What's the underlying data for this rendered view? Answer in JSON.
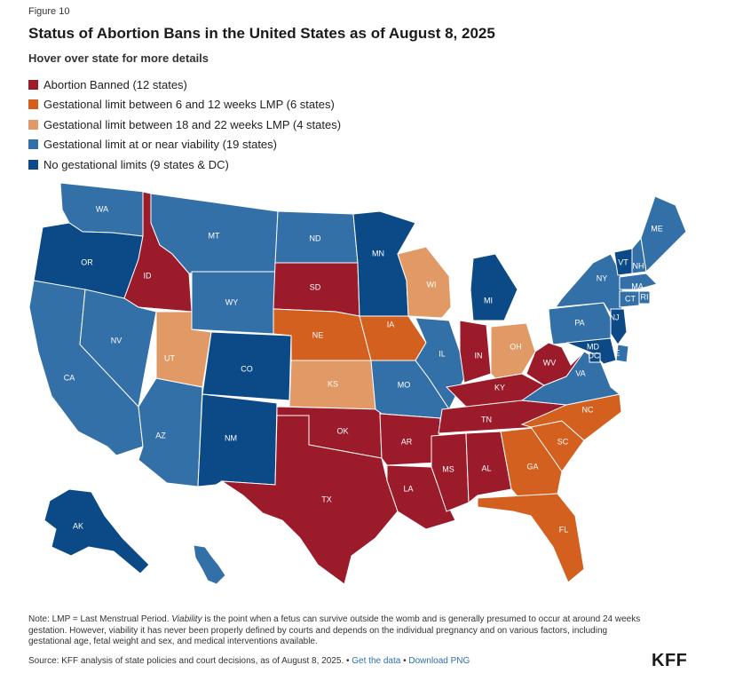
{
  "figure_label": "Figure 10",
  "title": "Status of Abortion Bans in the United States as of August 8, 2025",
  "subtitle": "Hover over state for more details",
  "colors": {
    "banned": "#9b1b2b",
    "limit_6_12": "#d4601f",
    "limit_18_22": "#e19a66",
    "viability": "#3470a8",
    "no_limit": "#0b4a86"
  },
  "legend": [
    {
      "label": "Abortion Banned (12 states)",
      "color": "#9b1b2b"
    },
    {
      "label": "Gestational limit between 6 and 12 weeks LMP (6 states)",
      "color": "#d4601f"
    },
    {
      "label": "Gestational limit between 18 and 22 weeks LMP (4 states)",
      "color": "#e19a66"
    },
    {
      "label": "Gestational limit at or near viability (19 states)",
      "color": "#3470a8"
    },
    {
      "label": "No gestational limits (9 states & DC)",
      "color": "#0b4a86"
    }
  ],
  "states": [
    {
      "abbr": "WA",
      "status": "viability"
    },
    {
      "abbr": "OR",
      "status": "no_limit"
    },
    {
      "abbr": "CA",
      "status": "viability"
    },
    {
      "abbr": "ID",
      "status": "banned"
    },
    {
      "abbr": "NV",
      "status": "viability"
    },
    {
      "abbr": "AZ",
      "status": "viability"
    },
    {
      "abbr": "UT",
      "status": "limit_18_22"
    },
    {
      "abbr": "MT",
      "status": "viability"
    },
    {
      "abbr": "WY",
      "status": "viability"
    },
    {
      "abbr": "CO",
      "status": "no_limit"
    },
    {
      "abbr": "NM",
      "status": "no_limit"
    },
    {
      "abbr": "ND",
      "status": "viability"
    },
    {
      "abbr": "SD",
      "status": "banned"
    },
    {
      "abbr": "NE",
      "status": "limit_6_12"
    },
    {
      "abbr": "KS",
      "status": "limit_18_22"
    },
    {
      "abbr": "OK",
      "status": "banned"
    },
    {
      "abbr": "TX",
      "status": "banned"
    },
    {
      "abbr": "MN",
      "status": "no_limit"
    },
    {
      "abbr": "IA",
      "status": "limit_6_12"
    },
    {
      "abbr": "MO",
      "status": "viability"
    },
    {
      "abbr": "AR",
      "status": "banned"
    },
    {
      "abbr": "LA",
      "status": "banned"
    },
    {
      "abbr": "WI",
      "status": "limit_18_22"
    },
    {
      "abbr": "IL",
      "status": "viability"
    },
    {
      "abbr": "MI",
      "status": "no_limit"
    },
    {
      "abbr": "IN",
      "status": "banned"
    },
    {
      "abbr": "OH",
      "status": "limit_18_22"
    },
    {
      "abbr": "KY",
      "status": "banned"
    },
    {
      "abbr": "TN",
      "status": "banned"
    },
    {
      "abbr": "MS",
      "status": "banned"
    },
    {
      "abbr": "AL",
      "status": "banned"
    },
    {
      "abbr": "GA",
      "status": "limit_6_12"
    },
    {
      "abbr": "FL",
      "status": "limit_6_12"
    },
    {
      "abbr": "SC",
      "status": "limit_6_12"
    },
    {
      "abbr": "NC",
      "status": "limit_6_12"
    },
    {
      "abbr": "VA",
      "status": "viability"
    },
    {
      "abbr": "WV",
      "status": "banned"
    },
    {
      "abbr": "PA",
      "status": "viability"
    },
    {
      "abbr": "NY",
      "status": "viability"
    },
    {
      "abbr": "VT",
      "status": "no_limit"
    },
    {
      "abbr": "NH",
      "status": "viability"
    },
    {
      "abbr": "ME",
      "status": "viability"
    },
    {
      "abbr": "MA",
      "status": "viability"
    },
    {
      "abbr": "RI",
      "status": "viability"
    },
    {
      "abbr": "CT",
      "status": "viability"
    },
    {
      "abbr": "NJ",
      "status": "no_limit"
    },
    {
      "abbr": "DE",
      "status": "viability"
    },
    {
      "abbr": "MD",
      "status": "no_limit"
    },
    {
      "abbr": "DC",
      "status": "no_limit"
    },
    {
      "abbr": "AK",
      "status": "no_limit"
    },
    {
      "abbr": "HI",
      "status": "viability"
    }
  ],
  "note": {
    "prefix": "Note: LMP = Last Menstrual Period. ",
    "italic": "Viability",
    "rest": " is the point when a fetus can survive outside the womb and is generally presumed to occur at around 24 weeks gestation. However, viability it has never been properly defined by courts and depends on the individual pregnancy and on various factors, including gestational age, fetal weight and sex, and medical interventions available."
  },
  "source": {
    "text": "Source: KFF analysis of state policies and court decisions, as of August 8, 2025. • ",
    "get_data": "Get the data",
    "separator": " • ",
    "download": "Download PNG"
  },
  "logo": "KFF"
}
